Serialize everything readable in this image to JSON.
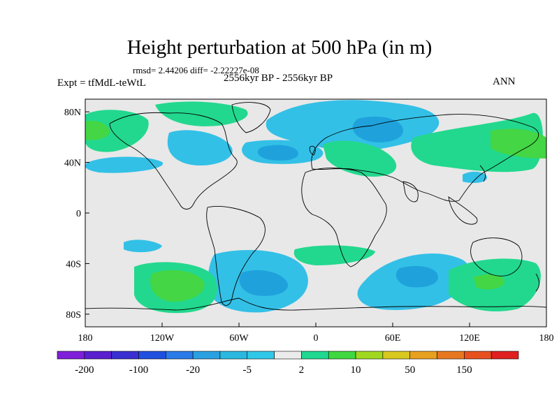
{
  "title": "Height perturbation at 500 hPa (in m)",
  "stats": "rmsd= 2.44206 diff= -2.22227e-08",
  "experiment": "Expt = tfMdL-teWtL",
  "period": "2556kyr BP - 2556kyr BP",
  "season": "ANN",
  "map": {
    "projection": "cylindrical equidistant",
    "lon_range": [
      -180,
      180
    ],
    "lat_range": [
      -90,
      90
    ],
    "lat_ticks": [
      {
        "label": "80N",
        "lat": 80
      },
      {
        "label": "40N",
        "lat": 40
      },
      {
        "label": "0",
        "lat": 0
      },
      {
        "label": "40S",
        "lat": -40
      },
      {
        "label": "80S",
        "lat": -80
      }
    ],
    "lon_ticks": [
      {
        "label": "180",
        "lon": -180
      },
      {
        "label": "120W",
        "lon": -120
      },
      {
        "label": "60W",
        "lon": -60
      },
      {
        "label": "0",
        "lon": 0
      },
      {
        "label": "60E",
        "lon": 60
      },
      {
        "label": "120E",
        "lon": 120
      },
      {
        "label": "180",
        "lon": 180
      }
    ],
    "background_color": "#e8e8e8"
  },
  "colorbar": {
    "colors": [
      "#7f1fd9",
      "#5a1fcf",
      "#3a2fd0",
      "#2050e0",
      "#2a7ae8",
      "#2aa0e0",
      "#2ab8e0",
      "#30c8e8",
      "#ebebeb",
      "#20d890",
      "#40d840",
      "#a0d820",
      "#d8c820",
      "#e8a020",
      "#e87820",
      "#e85020",
      "#e02020"
    ],
    "labels": [
      "-200",
      "-100",
      "-20",
      "-5",
      "2",
      "10",
      "50",
      "150"
    ]
  },
  "chart_data": {
    "type": "heatmap",
    "title": "Height perturbation at 500 hPa (in m)",
    "levels": [
      -200,
      -150,
      -100,
      -50,
      -20,
      -10,
      -5,
      -2,
      2,
      5,
      10,
      20,
      50,
      100,
      150,
      200
    ],
    "regions": [
      {
        "sign": "negative",
        "level": -5,
        "lon": [
          -40,
          90
        ],
        "lat": [
          45,
          75
        ]
      },
      {
        "sign": "negative",
        "level": -5,
        "lon": [
          -135,
          -50
        ],
        "lat": [
          35,
          65
        ]
      },
      {
        "sign": "negative",
        "level": -5,
        "lon": [
          -60,
          0
        ],
        "lat": [
          -80,
          -45
        ]
      },
      {
        "sign": "negative",
        "level": -5,
        "lon": [
          40,
          120
        ],
        "lat": [
          -80,
          -40
        ]
      },
      {
        "sign": "positive",
        "level": 5,
        "lon": [
          -180,
          -145
        ],
        "lat": [
          50,
          80
        ]
      },
      {
        "sign": "positive",
        "level": 10,
        "lon": [
          -150,
          -100
        ],
        "lat": [
          -80,
          -40
        ]
      },
      {
        "sign": "positive",
        "level": 5,
        "lon": [
          100,
          180
        ],
        "lat": [
          -80,
          -35
        ]
      },
      {
        "sign": "positive",
        "level": 5,
        "lon": [
          80,
          180
        ],
        "lat": [
          25,
          75
        ]
      }
    ]
  }
}
